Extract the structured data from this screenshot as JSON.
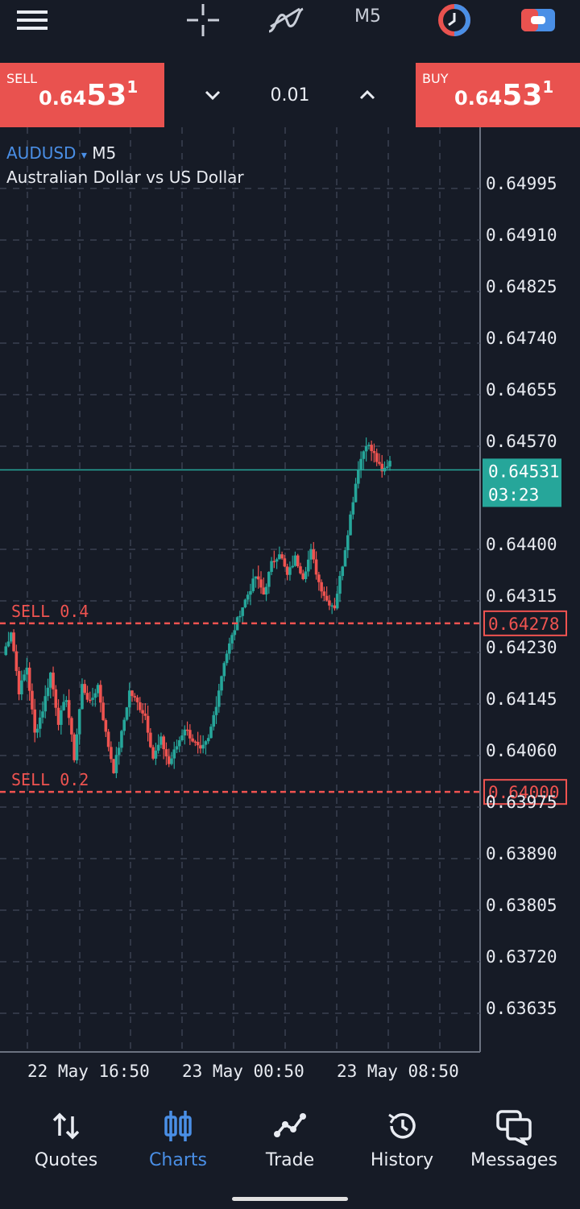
{
  "top_toolbar": {
    "icons": [
      "menu-icon",
      "crosshair-icon",
      "indicators-icon",
      "timeframe",
      "one-click-trading-icon",
      "toggle-icon"
    ],
    "timeframe": "M5"
  },
  "trade": {
    "sell_label": "SELL",
    "sell_price_small": "0.64",
    "sell_price_big": "53",
    "sell_price_sup": "1",
    "buy_label": "BUY",
    "buy_price_small": "0.64",
    "buy_price_big": "53",
    "buy_price_sup": "1",
    "volume": "0.01"
  },
  "symbol": {
    "name": "AUDUSD",
    "dropdown_glyph": "▾",
    "timeframe": "M5",
    "description": "Australian Dollar vs US Dollar"
  },
  "colors": {
    "background": "#161b26",
    "sell": "#e9524f",
    "buy": "#e9524f",
    "bull_candle": "#26a69a",
    "bear_candle": "#ef5350",
    "price_line": "#26a69a",
    "order_line": "#ef5350",
    "accent": "#4a8fe6"
  },
  "chart_data": {
    "type": "candlestick",
    "symbol": "AUDUSD",
    "timeframe": "M5",
    "price_axis_ticks": [
      "0.64995",
      "0.64910",
      "0.64825",
      "0.64740",
      "0.64655",
      "0.64570",
      "0.64400",
      "0.64315",
      "0.64230",
      "0.64145",
      "0.64060",
      "0.63975",
      "0.63890",
      "0.63805",
      "0.63720",
      "0.63635"
    ],
    "time_axis_ticks": [
      "22 May 16:50",
      "23 May 00:50",
      "23 May 08:50"
    ],
    "ylim": [
      0.6356,
      0.6507
    ],
    "current_price": "0.64531",
    "countdown": "03:23",
    "grid": true,
    "order_lines": [
      {
        "label": "SELL 0.4",
        "price": "0.64278"
      },
      {
        "label": "SELL 0.2",
        "price": "0.64000"
      }
    ],
    "close_path": [
      [
        0,
        0.6421
      ],
      [
        1,
        0.6425
      ],
      [
        2,
        0.6415
      ],
      [
        3,
        0.6419
      ],
      [
        4,
        0.6408
      ],
      [
        5,
        0.6412
      ],
      [
        6,
        0.6418
      ],
      [
        7,
        0.641
      ],
      [
        8,
        0.6414
      ],
      [
        9,
        0.6404
      ],
      [
        10,
        0.6416
      ],
      [
        11,
        0.6413
      ],
      [
        12,
        0.6416
      ],
      [
        13,
        0.6408
      ],
      [
        14,
        0.6402
      ],
      [
        15,
        0.6408
      ],
      [
        16,
        0.6415
      ],
      [
        17,
        0.6413
      ],
      [
        18,
        0.6411
      ],
      [
        19,
        0.6404
      ],
      [
        20,
        0.6407
      ],
      [
        21,
        0.6403
      ],
      [
        22,
        0.6406
      ],
      [
        23,
        0.6409
      ],
      [
        24,
        0.6407
      ],
      [
        25,
        0.6405
      ],
      [
        26,
        0.6407
      ],
      [
        27,
        0.6413
      ],
      [
        28,
        0.642
      ],
      [
        29,
        0.6424
      ],
      [
        30,
        0.6428
      ],
      [
        31,
        0.6431
      ],
      [
        32,
        0.6434
      ],
      [
        33,
        0.6431
      ],
      [
        34,
        0.6436
      ],
      [
        35,
        0.6438
      ],
      [
        36,
        0.6434
      ],
      [
        37,
        0.6437
      ],
      [
        38,
        0.6434
      ],
      [
        39,
        0.6438
      ],
      [
        40,
        0.6433
      ],
      [
        41,
        0.643
      ],
      [
        42,
        0.6429
      ],
      [
        43,
        0.6436
      ],
      [
        44,
        0.6444
      ],
      [
        45,
        0.6452
      ],
      [
        46,
        0.6456
      ],
      [
        47,
        0.6454
      ],
      [
        48,
        0.6451
      ],
      [
        49,
        0.6453
      ]
    ]
  },
  "bottom_nav": {
    "items": [
      {
        "label": "Quotes",
        "icon": "quotes-arrows-icon"
      },
      {
        "label": "Charts",
        "icon": "candlestick-icon"
      },
      {
        "label": "Trade",
        "icon": "trade-line-icon"
      },
      {
        "label": "History",
        "icon": "history-clock-icon"
      },
      {
        "label": "Messages",
        "icon": "messages-bubble-icon"
      }
    ],
    "active": "Charts"
  }
}
